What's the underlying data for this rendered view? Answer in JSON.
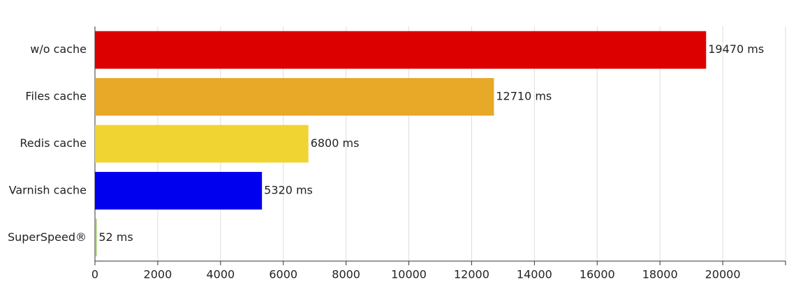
{
  "chart_data": {
    "type": "hbar",
    "categories": [
      "w/o cache",
      "Files cache",
      "Redis cache",
      "Varnish cache",
      "SuperSpeed®"
    ],
    "values": [
      19470,
      12710,
      6800,
      5320,
      52
    ],
    "value_labels": [
      "19470 ms",
      "12710 ms",
      "6800 ms",
      "5320 ms",
      "52 ms"
    ],
    "colors": [
      "#dd0000",
      "#e8a828",
      "#f0d432",
      "#0000ee",
      "#8bc34a"
    ],
    "xlim": [
      0,
      22000
    ],
    "xticks": [
      0,
      2000,
      4000,
      6000,
      8000,
      10000,
      12000,
      14000,
      16000,
      18000,
      20000
    ],
    "grid": true
  }
}
